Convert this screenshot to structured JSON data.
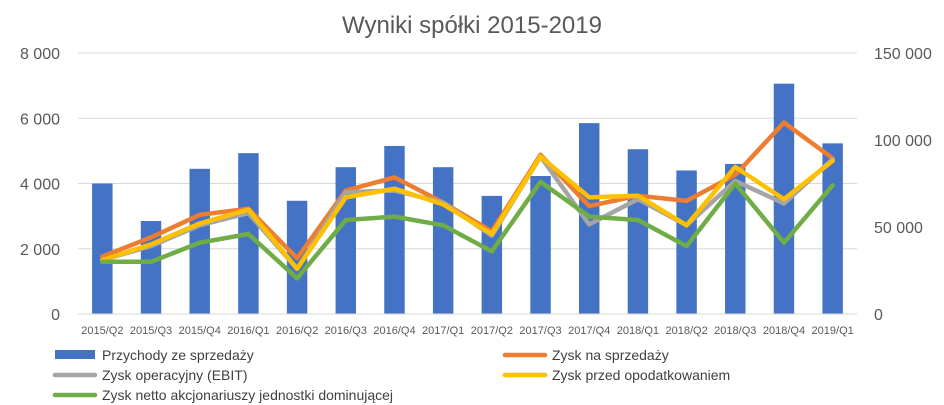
{
  "chart_data": {
    "type": "bar",
    "title": "Wyniki spółki 2015-2019",
    "xlabel": "",
    "ylabel": "",
    "categories": [
      "2015/Q2",
      "2015/Q3",
      "2015/Q4",
      "2016/Q1",
      "2016/Q2",
      "2016/Q3",
      "2016/Q4",
      "2017/Q1",
      "2017/Q2",
      "2017/Q3",
      "2017/Q4",
      "2018/Q1",
      "2018/Q2",
      "2018/Q3",
      "2018/Q4",
      "2019/Q1"
    ],
    "ylim": [
      0,
      8000
    ],
    "y2lim": [
      0,
      150000
    ],
    "y_ticks": [
      "0",
      "2 000",
      "4 000",
      "6 000",
      "8 000"
    ],
    "y2_ticks": [
      "0",
      "50 000",
      "100 000",
      "150 000"
    ],
    "grid": true,
    "legend_position": "bottom",
    "bar_series": {
      "name": "Przychody ze sprzedaży",
      "axis": "left",
      "color": "#4472C4",
      "values": [
        4000,
        2850,
        4450,
        4930,
        3470,
        4500,
        5150,
        4500,
        3620,
        4230,
        5850,
        5050,
        4400,
        4600,
        7060,
        5230
      ]
    },
    "line_series": [
      {
        "name": "Zysk na sprzedaży",
        "axis": "right",
        "color": "#ED7D31",
        "values": [
          33000,
          44000,
          57000,
          60500,
          32000,
          71000,
          78500,
          64000,
          47500,
          91500,
          62000,
          68000,
          65000,
          80000,
          110000,
          89500
        ]
      },
      {
        "name": "Zysk operacyjny (EBIT)",
        "axis": "right",
        "color": "#A5A5A5",
        "values": [
          31000,
          39000,
          51000,
          58000,
          26000,
          70000,
          71000,
          64000,
          45000,
          90500,
          51500,
          66000,
          51000,
          76500,
          63500,
          89000
        ]
      },
      {
        "name": "Zysk przed opodatkowaniem",
        "axis": "right",
        "color": "#FFC000",
        "values": [
          31000,
          40000,
          52000,
          60000,
          26000,
          67000,
          72000,
          63000,
          46000,
          90500,
          67000,
          68000,
          51000,
          84500,
          66000,
          88000
        ]
      },
      {
        "name": "Zysk netto akcjonariuszy jednostki dominującej",
        "axis": "right",
        "color": "#70AD47",
        "values": [
          30000,
          30000,
          41000,
          46000,
          20500,
          54000,
          56000,
          51000,
          36000,
          76000,
          56000,
          54000,
          39000,
          75000,
          41000,
          74000
        ]
      }
    ]
  }
}
